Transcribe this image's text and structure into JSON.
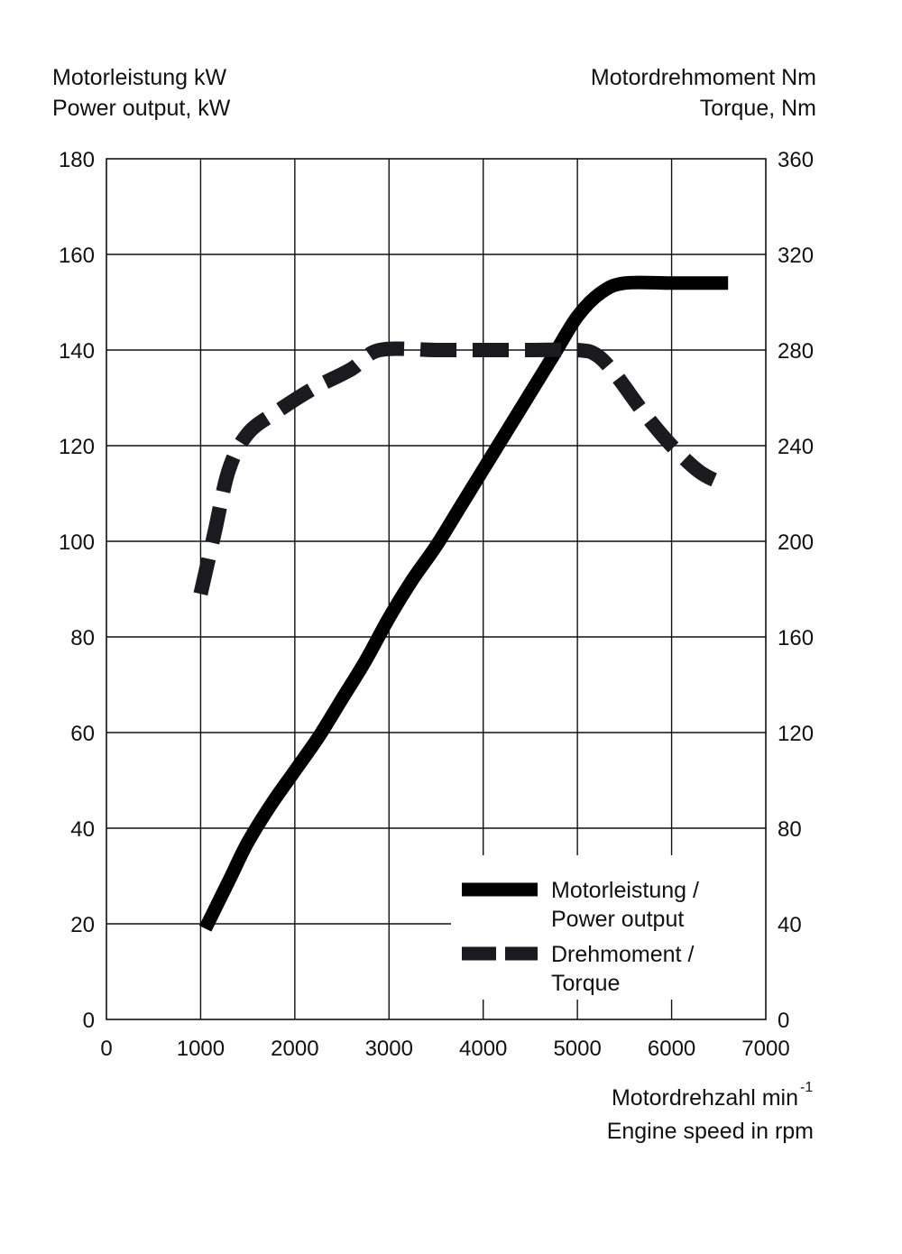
{
  "chart_data": {
    "type": "line",
    "left_axis_title": [
      "Motorleistung kW",
      "Power output, kW"
    ],
    "right_axis_title": [
      "Motordrehmoment Nm",
      "Torque, Nm"
    ],
    "x_axis_title": {
      "line1": "Motordrehzahl min",
      "line1_superscript": "-1",
      "line2": "Engine speed in rpm"
    },
    "xlim": [
      0,
      7000
    ],
    "ylim_left": [
      0,
      180
    ],
    "ylim_right": [
      0,
      360
    ],
    "x_ticks": [
      "0",
      "1000",
      "2000",
      "3000",
      "4000",
      "5000",
      "6000",
      "7000"
    ],
    "y_ticks_left": [
      "0",
      "20",
      "40",
      "60",
      "80",
      "100",
      "120",
      "140",
      "160",
      "180"
    ],
    "y_ticks_right": [
      "0",
      "40",
      "80",
      "120",
      "160",
      "200",
      "240",
      "280",
      "320",
      "360"
    ],
    "grid": true,
    "legend_position": "bottom-right",
    "series": [
      {
        "name": "Motorleistung / Power output",
        "legend_lines": [
          "Motorleistung /",
          "Power output"
        ],
        "axis": "left",
        "style": "solid",
        "color": "#000000",
        "points": [
          [
            1050,
            19
          ],
          [
            1300,
            29
          ],
          [
            1500,
            37
          ],
          [
            1750,
            45
          ],
          [
            2000,
            52
          ],
          [
            2250,
            59
          ],
          [
            2500,
            67
          ],
          [
            2750,
            75
          ],
          [
            3000,
            84
          ],
          [
            3250,
            92
          ],
          [
            3500,
            99
          ],
          [
            3750,
            107
          ],
          [
            4000,
            115
          ],
          [
            4250,
            123
          ],
          [
            4500,
            131
          ],
          [
            4750,
            139
          ],
          [
            5000,
            147
          ],
          [
            5250,
            152
          ],
          [
            5500,
            154
          ],
          [
            6000,
            154
          ],
          [
            6600,
            154
          ]
        ]
      },
      {
        "name": "Drehmoment / Torque",
        "legend_lines": [
          "Drehmoment /",
          "Torque"
        ],
        "axis": "right",
        "style": "dashed",
        "color": "#1a1a1f",
        "points": [
          [
            1000,
            178
          ],
          [
            1150,
            204
          ],
          [
            1300,
            230
          ],
          [
            1500,
            245
          ],
          [
            1800,
            254
          ],
          [
            2200,
            264
          ],
          [
            2600,
            272
          ],
          [
            2900,
            280
          ],
          [
            3500,
            280
          ],
          [
            4000,
            280
          ],
          [
            4500,
            280
          ],
          [
            5000,
            280
          ],
          [
            5200,
            278
          ],
          [
            5400,
            270
          ],
          [
            5700,
            254
          ],
          [
            6000,
            240
          ],
          [
            6300,
            229
          ],
          [
            6550,
            224
          ]
        ]
      }
    ]
  }
}
